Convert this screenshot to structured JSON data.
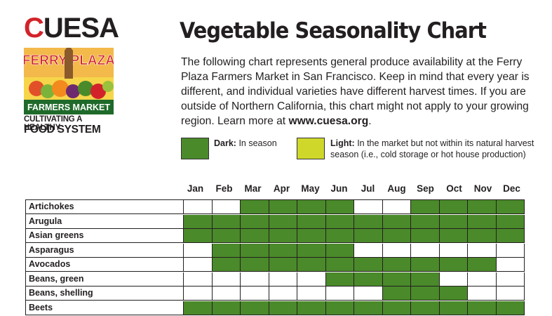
{
  "logo": {
    "brand_first": "C",
    "brand_rest": "UESA",
    "art_line1": "FERRY PLAZA",
    "art_line2": "FARMERS MARKET",
    "tagline1": "CULTIVATING A HEALTHY",
    "tagline2": "FOOD SYSTEM"
  },
  "title": "Vegetable Seasonality Chart",
  "intro": {
    "text": "The following chart represents general produce availability at the Ferry Plaza Farmers Market in San Francisco. Keep in mind that every year is different, and individual varieties have different harvest times. If you are outside of Northern California, this chart might not apply to your growing region. Learn more at ",
    "link": "www.cuesa.org",
    "end": "."
  },
  "legend": {
    "dark_label": "Dark:",
    "dark_text": " In season",
    "light_label": "Light:",
    "light_text": " In the market but not within its natural harvest season (i.e., cold storage or hot house production)",
    "dark_color": "#4a8a2a",
    "light_color": "#cfd82a"
  },
  "months": [
    "Jan",
    "Feb",
    "Mar",
    "Apr",
    "May",
    "Jun",
    "Jul",
    "Aug",
    "Sep",
    "Oct",
    "Nov",
    "Dec"
  ],
  "rows": [
    {
      "name": "Artichokes",
      "months": [
        0,
        0,
        1,
        1,
        1,
        1,
        0,
        0,
        1,
        1,
        1,
        1
      ]
    },
    {
      "name": "Arugula",
      "months": [
        1,
        1,
        1,
        1,
        1,
        1,
        1,
        1,
        1,
        1,
        1,
        1
      ]
    },
    {
      "name": "Asian greens",
      "months": [
        1,
        1,
        1,
        1,
        1,
        1,
        1,
        1,
        1,
        1,
        1,
        1
      ]
    },
    {
      "name": "Asparagus",
      "months": [
        0,
        1,
        1,
        1,
        1,
        1,
        0,
        0,
        0,
        0,
        0,
        0
      ]
    },
    {
      "name": "Avocados",
      "months": [
        0,
        1,
        1,
        1,
        1,
        1,
        1,
        1,
        1,
        1,
        1,
        0
      ]
    },
    {
      "name": "Beans, green",
      "months": [
        0,
        0,
        0,
        0,
        0,
        1,
        1,
        1,
        1,
        0,
        0,
        0
      ]
    },
    {
      "name": "Beans, shelling",
      "months": [
        0,
        0,
        0,
        0,
        0,
        0,
        0,
        1,
        1,
        1,
        0,
        0
      ]
    },
    {
      "name": "Beets",
      "months": [
        1,
        1,
        1,
        1,
        1,
        1,
        1,
        1,
        1,
        1,
        1,
        1
      ]
    }
  ]
}
